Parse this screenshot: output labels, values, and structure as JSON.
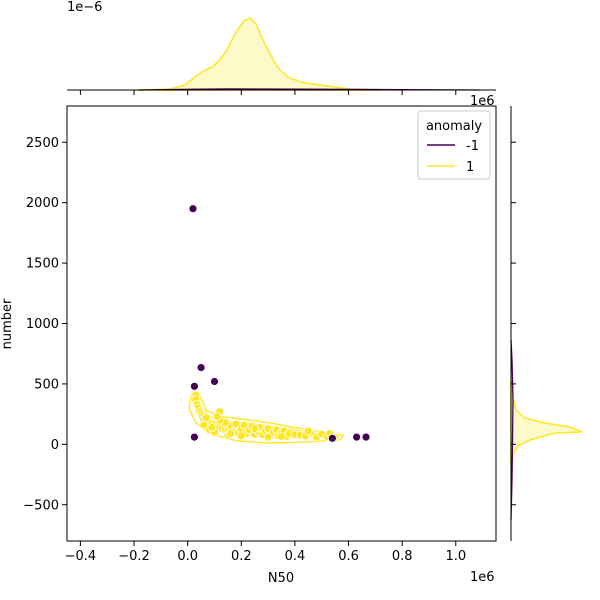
{
  "chart_data": {
    "type": "scatter",
    "title": "",
    "xlabel": "N50",
    "ylabel": "number",
    "x_multiplier": "1e6",
    "y_multiplier": "1e6",
    "top_multiplier": "1e−6",
    "xlim": [
      -0.45,
      1.15
    ],
    "ylim": [
      -800,
      2800
    ],
    "x_ticks": [
      -0.4,
      -0.2,
      0.0,
      0.2,
      0.4,
      0.6,
      0.8,
      1.0
    ],
    "x_tick_labels": [
      "−0.4",
      "−0.2",
      "0.0",
      "0.2",
      "0.4",
      "0.6",
      "0.8",
      "1.0"
    ],
    "y_ticks": [
      -500,
      0,
      500,
      1000,
      1500,
      2000,
      2500
    ],
    "y_tick_labels": [
      "−500",
      "0",
      "500",
      "1000",
      "1500",
      "2000",
      "2500"
    ],
    "legend": {
      "title": "anomaly",
      "position": "top-right",
      "entries": [
        {
          "label": "-1",
          "color": "#440154"
        },
        {
          "label": "1",
          "color": "#fde725"
        }
      ]
    },
    "series": [
      {
        "name": "-1",
        "color": "#440154",
        "points": [
          [
            0.02,
            1950
          ],
          [
            0.05,
            635
          ],
          [
            0.1,
            520
          ],
          [
            0.025,
            480
          ],
          [
            0.025,
            60
          ],
          [
            0.54,
            50
          ],
          [
            0.63,
            60
          ],
          [
            0.665,
            60
          ]
        ]
      },
      {
        "name": "1",
        "color": "#fde725",
        "points": [
          [
            0.03,
            410
          ],
          [
            0.03,
            370
          ],
          [
            0.035,
            330
          ],
          [
            0.04,
            300
          ],
          [
            0.045,
            270
          ],
          [
            0.05,
            250
          ],
          [
            0.055,
            230
          ],
          [
            0.06,
            210
          ],
          [
            0.07,
            190
          ],
          [
            0.08,
            180
          ],
          [
            0.09,
            175
          ],
          [
            0.1,
            165
          ],
          [
            0.11,
            150
          ],
          [
            0.12,
            140
          ],
          [
            0.12,
            270
          ],
          [
            0.13,
            130
          ],
          [
            0.14,
            120
          ],
          [
            0.15,
            110
          ],
          [
            0.16,
            150
          ],
          [
            0.17,
            100
          ],
          [
            0.18,
            170
          ],
          [
            0.19,
            95
          ],
          [
            0.2,
            130
          ],
          [
            0.21,
            160
          ],
          [
            0.22,
            90
          ],
          [
            0.23,
            120
          ],
          [
            0.24,
            150
          ],
          [
            0.25,
            85
          ],
          [
            0.26,
            110
          ],
          [
            0.27,
            140
          ],
          [
            0.28,
            80
          ],
          [
            0.29,
            110
          ],
          [
            0.3,
            130
          ],
          [
            0.31,
            75
          ],
          [
            0.32,
            100
          ],
          [
            0.33,
            120
          ],
          [
            0.34,
            70
          ],
          [
            0.35,
            95
          ],
          [
            0.36,
            110
          ],
          [
            0.37,
            65
          ],
          [
            0.38,
            90
          ],
          [
            0.4,
            80
          ],
          [
            0.42,
            75
          ],
          [
            0.44,
            70
          ],
          [
            0.46,
            95
          ],
          [
            0.48,
            60
          ],
          [
            0.5,
            85
          ],
          [
            0.52,
            65
          ],
          [
            0.53,
            90
          ],
          [
            0.55,
            55
          ],
          [
            0.08,
            120
          ],
          [
            0.1,
            100
          ],
          [
            0.14,
            180
          ],
          [
            0.06,
            160
          ],
          [
            0.09,
            140
          ],
          [
            0.15,
            75
          ],
          [
            0.2,
            70
          ],
          [
            0.25,
            130
          ],
          [
            0.3,
            60
          ],
          [
            0.35,
            65
          ],
          [
            0.12,
            200
          ],
          [
            0.16,
            90
          ],
          [
            0.45,
            110
          ],
          [
            0.11,
            230
          ],
          [
            0.07,
            220
          ]
        ]
      }
    ]
  }
}
